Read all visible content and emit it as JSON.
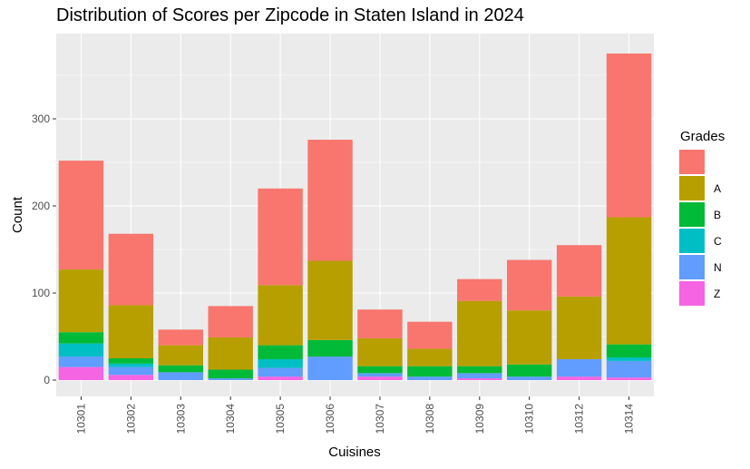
{
  "chart_data": {
    "type": "bar",
    "stacked": true,
    "title": "Distribution of Scores per Zipcode in Staten Island in 2024",
    "xlabel": "Cuisines",
    "ylabel": "Count",
    "ylim": [
      0,
      395
    ],
    "yticks": [
      0,
      100,
      200,
      300
    ],
    "grid": true,
    "legend_title": "Grades",
    "legend_position": "right",
    "categories": [
      "10301",
      "10302",
      "10303",
      "10304",
      "10305",
      "10306",
      "10307",
      "10308",
      "10309",
      "10310",
      "10312",
      "10314"
    ],
    "series": [
      {
        "name": "",
        "color": "#F8766D",
        "values": [
          125,
          82,
          18,
          36,
          111,
          139,
          33,
          31,
          25,
          58,
          59,
          188
        ]
      },
      {
        "name": "A",
        "color": "#B79F00",
        "values": [
          72,
          61,
          23,
          37,
          69,
          91,
          32,
          20,
          75,
          62,
          72,
          146
        ]
      },
      {
        "name": "B",
        "color": "#00BA38",
        "values": [
          13,
          6,
          8,
          10,
          16,
          19,
          8,
          12,
          8,
          14,
          0,
          15
        ]
      },
      {
        "name": "C",
        "color": "#00BFC4",
        "values": [
          15,
          4,
          0,
          0,
          10,
          0,
          0,
          0,
          0,
          0,
          0,
          4
        ]
      },
      {
        "name": "N",
        "color": "#619CFF",
        "values": [
          12,
          9,
          9,
          2,
          10,
          27,
          4,
          4,
          6,
          4,
          20,
          19
        ]
      },
      {
        "name": "Z",
        "color": "#F564E3",
        "values": [
          15,
          6,
          0,
          0,
          4,
          0,
          4,
          0,
          2,
          0,
          4,
          3
        ]
      }
    ]
  }
}
